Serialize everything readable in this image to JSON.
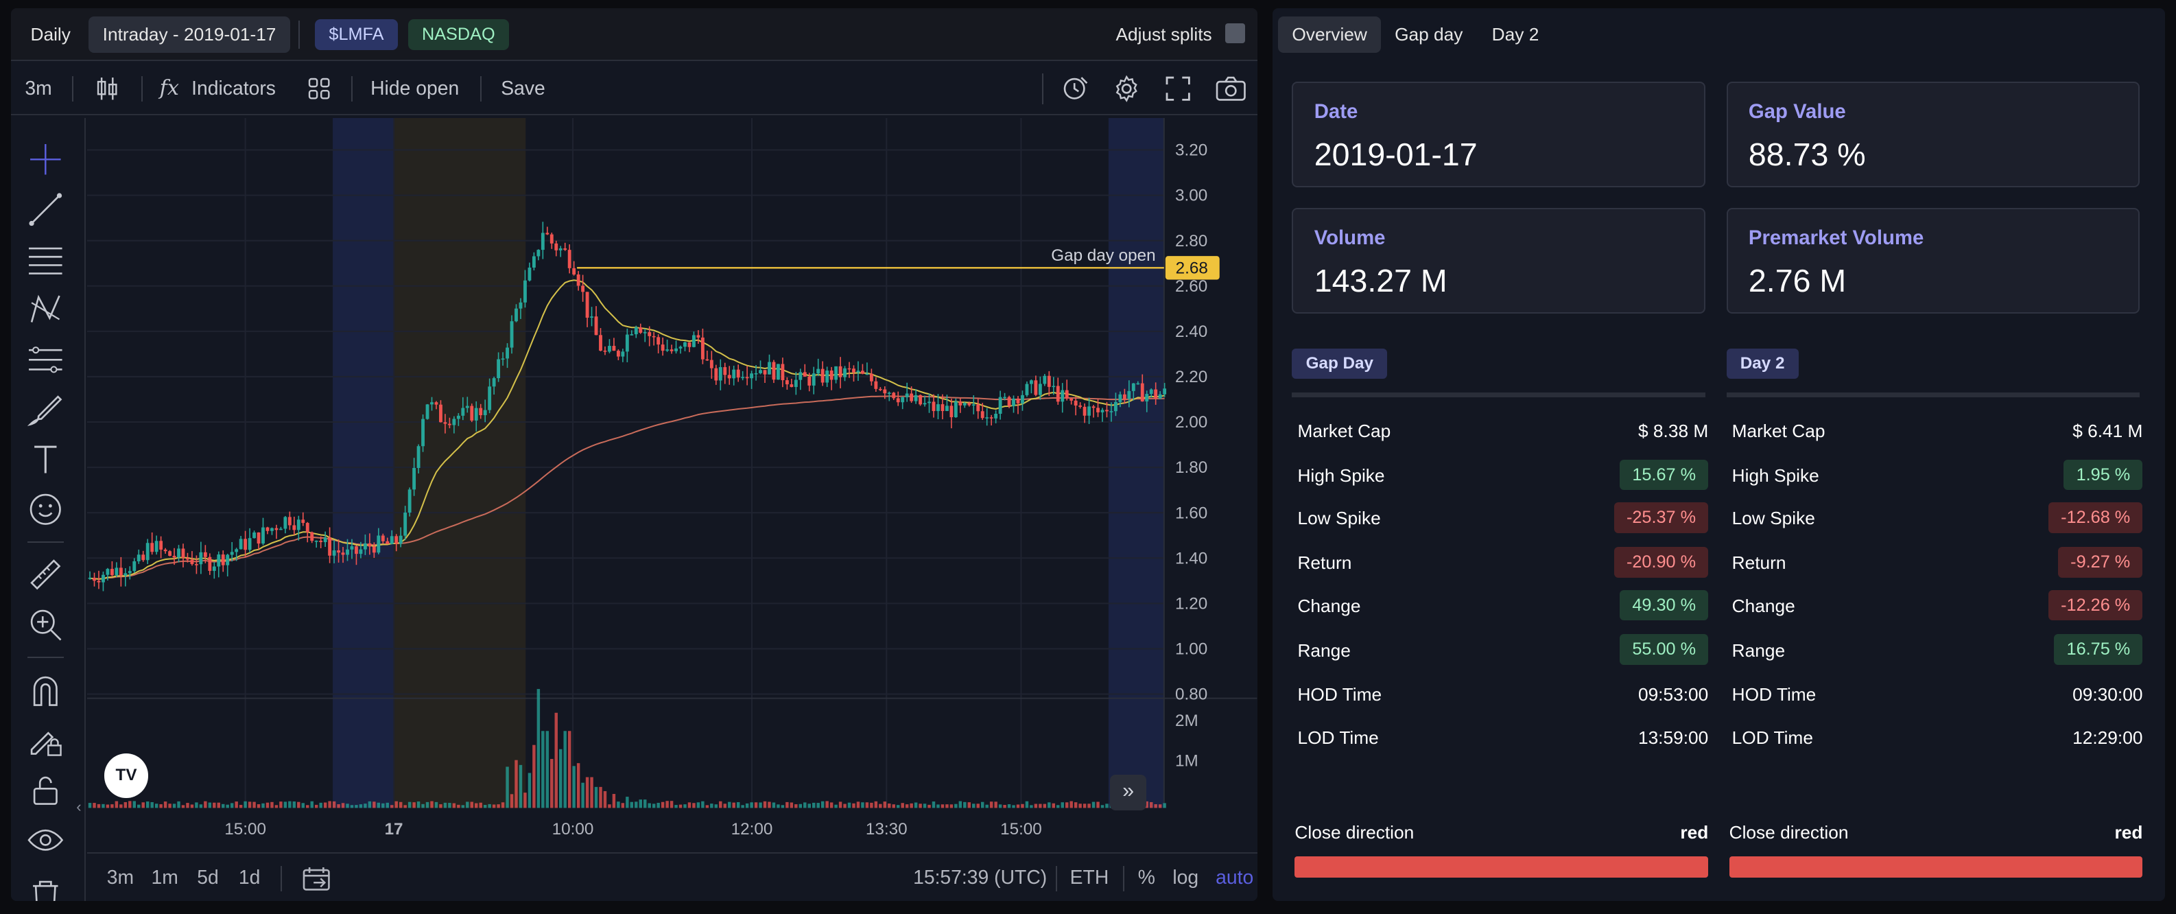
{
  "topbar": {
    "daily_label": "Daily",
    "intraday_label": "Intraday - 2019-01-17",
    "ticker": "$LMFA",
    "exchange": "NASDAQ",
    "adjust_splits_label": "Adjust splits"
  },
  "toolbar": {
    "interval": "3m",
    "indicators_label": "Indicators",
    "hide_open_label": "Hide open",
    "save_label": "Save"
  },
  "chart": {
    "gap_open_label": "Gap day open",
    "gap_open_value": "2.68",
    "logo_text": "TV"
  },
  "chart_data": {
    "type": "candlestick",
    "y_ticks": [
      "3.20",
      "3.00",
      "2.80",
      "2.60",
      "2.40",
      "2.20",
      "2.00",
      "1.80",
      "1.60",
      "1.40",
      "1.20",
      "1.00",
      "0.80"
    ],
    "ylim": [
      0.8,
      3.2
    ],
    "volume_ticks": [
      "2M",
      "1M"
    ],
    "x_ticks": [
      "15:00",
      "17",
      "10:00",
      "12:00",
      "13:30",
      "15:00"
    ],
    "gap_day_open": 2.68,
    "price_path": [
      [
        0,
        1.31
      ],
      [
        10,
        1.33
      ],
      [
        25,
        1.36
      ],
      [
        40,
        1.38
      ],
      [
        45,
        1.47
      ],
      [
        55,
        1.42
      ],
      [
        70,
        1.4
      ],
      [
        90,
        1.38
      ],
      [
        110,
        1.45
      ],
      [
        130,
        1.52
      ],
      [
        145,
        1.58
      ],
      [
        160,
        1.52
      ],
      [
        175,
        1.44
      ],
      [
        190,
        1.41
      ],
      [
        205,
        1.46
      ],
      [
        222,
        1.46
      ],
      [
        230,
        1.58
      ],
      [
        238,
        1.9
      ],
      [
        244,
        2.1
      ],
      [
        255,
        2.02
      ],
      [
        270,
        2.03
      ],
      [
        285,
        2.05
      ],
      [
        300,
        2.3
      ],
      [
        312,
        2.55
      ],
      [
        322,
        2.7
      ],
      [
        328,
        2.85
      ],
      [
        336,
        2.78
      ],
      [
        344,
        2.75
      ],
      [
        352,
        2.68
      ],
      [
        362,
        2.45
      ],
      [
        372,
        2.3
      ],
      [
        382,
        2.3
      ],
      [
        395,
        2.45
      ],
      [
        410,
        2.35
      ],
      [
        425,
        2.3
      ],
      [
        440,
        2.38
      ],
      [
        450,
        2.2
      ],
      [
        470,
        2.23
      ],
      [
        490,
        2.24
      ],
      [
        510,
        2.18
      ],
      [
        530,
        2.2
      ],
      [
        550,
        2.22
      ],
      [
        570,
        2.17
      ],
      [
        590,
        2.1
      ],
      [
        610,
        2.06
      ],
      [
        630,
        2.05
      ],
      [
        650,
        2.05
      ],
      [
        670,
        2.12
      ],
      [
        690,
        2.17
      ],
      [
        710,
        2.07
      ],
      [
        730,
        2.04
      ],
      [
        750,
        2.14
      ],
      [
        770,
        2.12
      ],
      [
        780,
        2.13
      ]
    ],
    "volume_bars": [
      [
        318,
        0.25
      ],
      [
        322,
        0.45
      ],
      [
        326,
        0.85
      ],
      [
        330,
        0.55
      ],
      [
        334,
        0.35
      ],
      [
        338,
        0.68
      ],
      [
        342,
        0.42
      ],
      [
        346,
        0.55
      ],
      [
        350,
        0.25
      ],
      [
        354,
        0.32
      ],
      [
        358,
        0.18
      ],
      [
        362,
        0.22
      ],
      [
        368,
        0.15
      ],
      [
        374,
        0.12
      ],
      [
        380,
        0.1
      ],
      [
        390,
        0.08
      ],
      [
        400,
        0.06
      ],
      [
        420,
        0.05
      ],
      [
        440,
        0.04
      ],
      [
        460,
        0.03
      ],
      [
        480,
        0.04
      ],
      [
        520,
        0.03
      ],
      [
        560,
        0.04
      ],
      [
        600,
        0.03
      ],
      [
        640,
        0.03
      ],
      [
        680,
        0.02
      ],
      [
        720,
        0.03
      ],
      [
        760,
        0.04
      ]
    ],
    "session_markers": [
      "premarket",
      "regular",
      "afterhours"
    ]
  },
  "bottombar": {
    "ranges": [
      "3m",
      "1m",
      "5d",
      "1d"
    ],
    "clock": "15:57:39 (UTC)",
    "session": "ETH",
    "percent": "%",
    "log": "log",
    "auto": "auto"
  },
  "right": {
    "tabs": [
      "Overview",
      "Gap day",
      "Day 2"
    ],
    "cards": {
      "date_label": "Date",
      "date_value": "2019-01-17",
      "gap_label": "Gap Value",
      "gap_value": "88.73 %",
      "volume_label": "Volume",
      "volume_value": "143.27 M",
      "pm_label": "Premarket Volume",
      "pm_value": "2.76 M"
    },
    "gapday": {
      "title": "Gap Day",
      "rows": [
        {
          "label": "Market Cap",
          "value": "$ 8.38 M"
        },
        {
          "label": "High Spike",
          "value": "15.67 %"
        },
        {
          "label": "Low Spike",
          "value": "-25.37 %"
        },
        {
          "label": "Return",
          "value": "-20.90 %"
        },
        {
          "label": "Change",
          "value": "49.30 %"
        },
        {
          "label": "Range",
          "value": "55.00 %"
        },
        {
          "label": "HOD Time",
          "value": "09:53:00"
        },
        {
          "label": "LOD Time",
          "value": "13:59:00"
        }
      ],
      "close_label": "Close direction",
      "close_value": "red"
    },
    "day2": {
      "title": "Day 2",
      "rows": [
        {
          "label": "Market Cap",
          "value": "$ 6.41 M"
        },
        {
          "label": "High Spike",
          "value": "1.95 %"
        },
        {
          "label": "Low Spike",
          "value": "-12.68 %"
        },
        {
          "label": "Return",
          "value": "-9.27 %"
        },
        {
          "label": "Change",
          "value": "-12.26 %"
        },
        {
          "label": "Range",
          "value": "16.75 %"
        },
        {
          "label": "HOD Time",
          "value": "09:30:00"
        },
        {
          "label": "LOD Time",
          "value": "12:29:00"
        }
      ],
      "close_label": "Close direction",
      "close_value": "red"
    }
  },
  "colors": {
    "accent": "#9e9cf3",
    "gap_line": "#f0c33c",
    "up": "#26a69a",
    "down": "#ef5350",
    "positive": "#9ff0c3",
    "negative": "#ff8f8f"
  }
}
